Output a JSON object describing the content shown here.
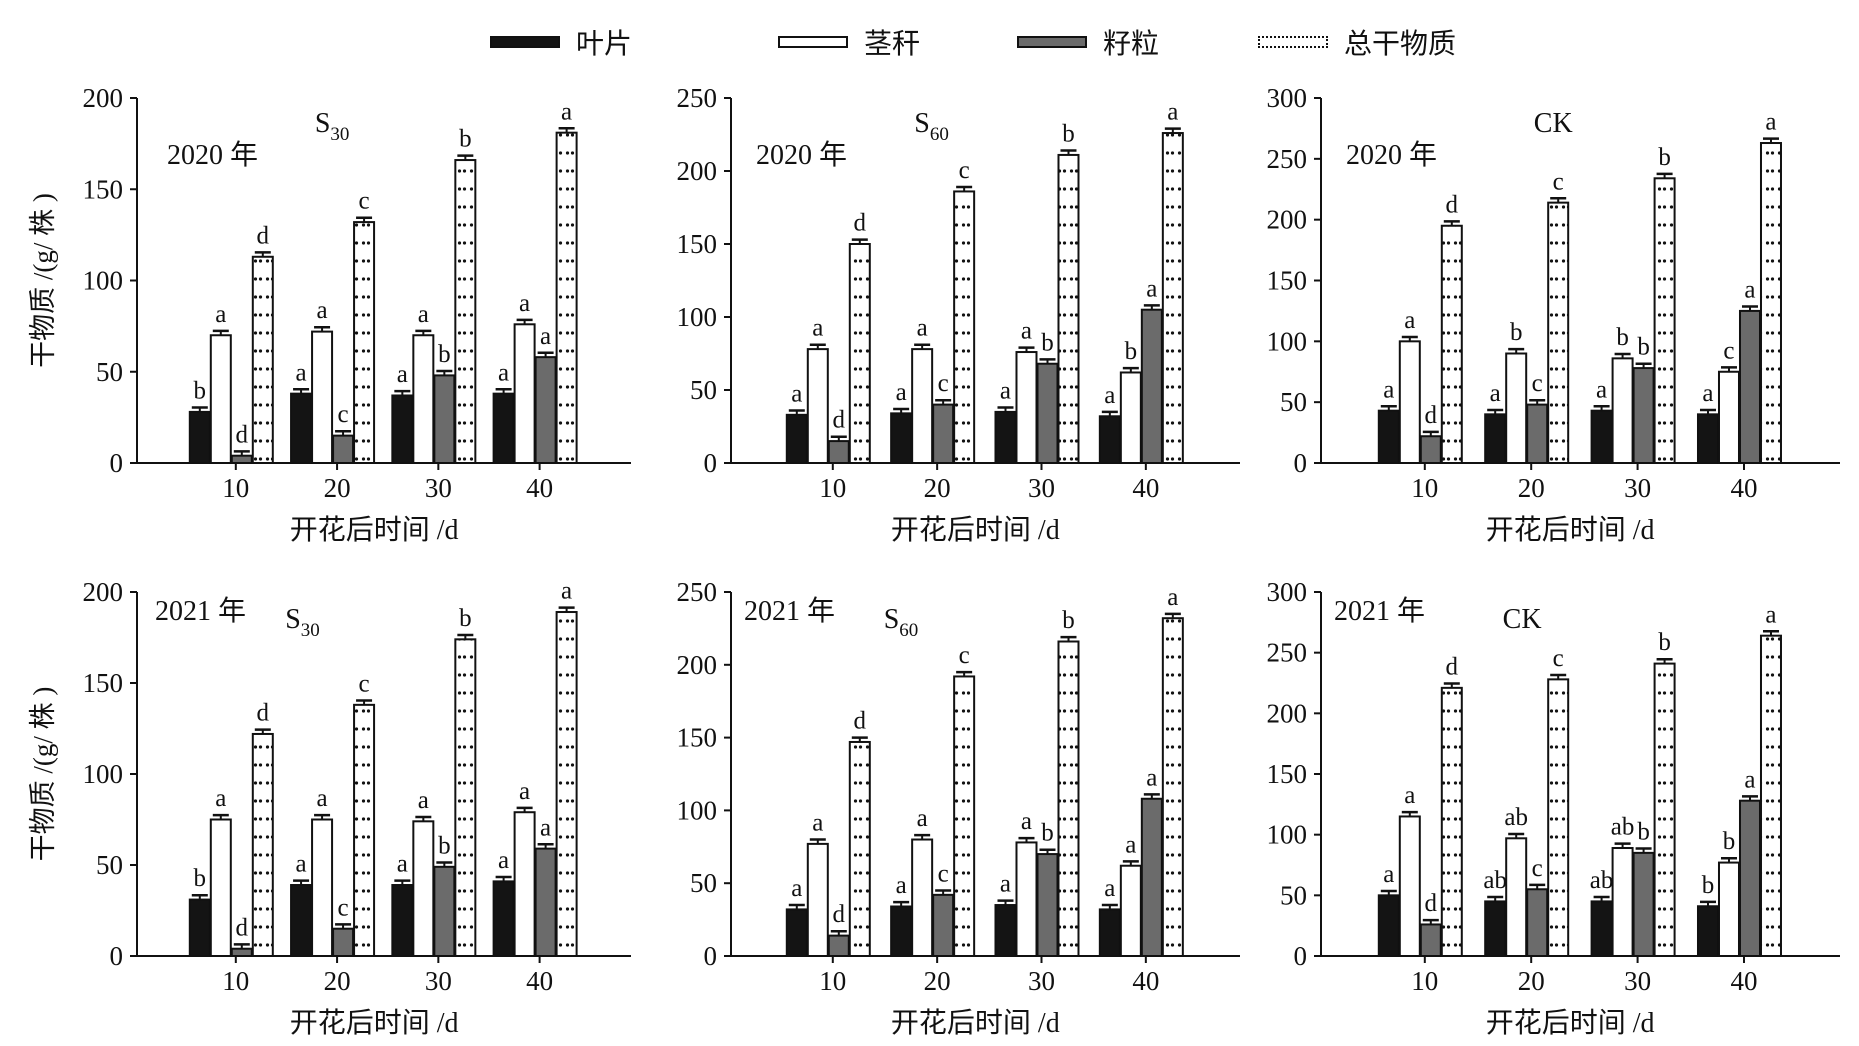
{
  "legend": {
    "leaf": "叶片",
    "stem": "茎秆",
    "grain": "籽粒",
    "total": "总干物质"
  },
  "colors": {
    "leaf": "#141414",
    "stem": "#ffffff",
    "grain": "#6b6b6b",
    "total": "#ffffff"
  },
  "chart_data": [
    {
      "type": "bar",
      "year": "2020 年",
      "title_main": "S",
      "title_sub": "30",
      "ylabel": "干物质 /(g/ 株 )",
      "xlabel": "开花后时间 /d",
      "ylim": [
        0,
        200
      ],
      "yticks": [
        0,
        50,
        100,
        150,
        200
      ],
      "categories": [
        "10",
        "20",
        "30",
        "40"
      ],
      "series": [
        {
          "name": "叶片",
          "values": [
            28,
            38,
            37,
            38
          ],
          "letters": [
            "b",
            "a",
            "a",
            "a"
          ]
        },
        {
          "name": "茎秆",
          "values": [
            70,
            72,
            70,
            76
          ],
          "letters": [
            "a",
            "a",
            "a",
            "a"
          ]
        },
        {
          "name": "籽粒",
          "values": [
            4,
            15,
            48,
            58
          ],
          "letters": [
            "d",
            "c",
            "b",
            "a"
          ]
        },
        {
          "name": "总干物质",
          "values": [
            113,
            132,
            166,
            181
          ],
          "letters": [
            "d",
            "c",
            "b",
            "a"
          ]
        }
      ]
    },
    {
      "type": "bar",
      "year": "2020 年",
      "title_main": "S",
      "title_sub": "60",
      "ylabel": "",
      "xlabel": "开花后时间 /d",
      "ylim": [
        0,
        250
      ],
      "yticks": [
        0,
        50,
        100,
        150,
        200,
        250
      ],
      "categories": [
        "10",
        "20",
        "30",
        "40"
      ],
      "series": [
        {
          "name": "叶片",
          "values": [
            33,
            34,
            35,
            32
          ],
          "letters": [
            "a",
            "a",
            "a",
            "a"
          ]
        },
        {
          "name": "茎秆",
          "values": [
            78,
            78,
            76,
            62
          ],
          "letters": [
            "a",
            "a",
            "a",
            "b"
          ]
        },
        {
          "name": "籽粒",
          "values": [
            15,
            40,
            68,
            105
          ],
          "letters": [
            "d",
            "c",
            "b",
            "a"
          ]
        },
        {
          "name": "总干物质",
          "values": [
            150,
            186,
            211,
            226
          ],
          "letters": [
            "d",
            "c",
            "b",
            "a"
          ]
        }
      ]
    },
    {
      "type": "bar",
      "year": "2020 年",
      "title_main": "CK",
      "title_sub": "",
      "ylabel": "",
      "xlabel": "开花后时间 /d",
      "ylim": [
        0,
        300
      ],
      "yticks": [
        0,
        50,
        100,
        150,
        200,
        250,
        300
      ],
      "categories": [
        "10",
        "20",
        "30",
        "40"
      ],
      "series": [
        {
          "name": "叶片",
          "values": [
            43,
            40,
            43,
            40
          ],
          "letters": [
            "a",
            "a",
            "a",
            "a"
          ]
        },
        {
          "name": "茎秆",
          "values": [
            100,
            90,
            86,
            75
          ],
          "letters": [
            "a",
            "b",
            "b",
            "c"
          ]
        },
        {
          "name": "籽粒",
          "values": [
            22,
            48,
            78,
            125
          ],
          "letters": [
            "d",
            "c",
            "b",
            "a"
          ]
        },
        {
          "name": "总干物质",
          "values": [
            195,
            214,
            234,
            263
          ],
          "letters": [
            "d",
            "c",
            "b",
            "a"
          ]
        }
      ]
    },
    {
      "type": "bar",
      "year": "2021 年",
      "title_main": "S",
      "title_sub": "30",
      "ylabel": "干物质 /(g/ 株 )",
      "xlabel": "开花后时间 /d",
      "ylim": [
        0,
        200
      ],
      "yticks": [
        0,
        50,
        100,
        150,
        200
      ],
      "categories": [
        "10",
        "20",
        "30",
        "40"
      ],
      "series": [
        {
          "name": "叶片",
          "values": [
            31,
            39,
            39,
            41
          ],
          "letters": [
            "b",
            "a",
            "a",
            "a"
          ]
        },
        {
          "name": "茎秆",
          "values": [
            75,
            75,
            74,
            79
          ],
          "letters": [
            "a",
            "a",
            "a",
            "a"
          ]
        },
        {
          "name": "籽粒",
          "values": [
            4,
            15,
            49,
            59
          ],
          "letters": [
            "d",
            "c",
            "b",
            "a"
          ]
        },
        {
          "name": "总干物质",
          "values": [
            122,
            138,
            174,
            189
          ],
          "letters": [
            "d",
            "c",
            "b",
            "a"
          ]
        }
      ]
    },
    {
      "type": "bar",
      "year": "2021 年",
      "title_main": "S",
      "title_sub": "60",
      "ylabel": "",
      "xlabel": "开花后时间 /d",
      "ylim": [
        0,
        250
      ],
      "yticks": [
        0,
        50,
        100,
        150,
        200,
        250
      ],
      "categories": [
        "10",
        "20",
        "30",
        "40"
      ],
      "series": [
        {
          "name": "叶片",
          "values": [
            32,
            34,
            35,
            32
          ],
          "letters": [
            "a",
            "a",
            "a",
            "a"
          ]
        },
        {
          "name": "茎秆",
          "values": [
            77,
            80,
            78,
            62
          ],
          "letters": [
            "a",
            "a",
            "a",
            "a"
          ]
        },
        {
          "name": "籽粒",
          "values": [
            14,
            42,
            70,
            108
          ],
          "letters": [
            "d",
            "c",
            "b",
            "a"
          ]
        },
        {
          "name": "总干物质",
          "values": [
            147,
            192,
            216,
            232
          ],
          "letters": [
            "d",
            "c",
            "b",
            "a"
          ]
        }
      ]
    },
    {
      "type": "bar",
      "year": "2021 年",
      "title_main": "CK",
      "title_sub": "",
      "ylabel": "",
      "xlabel": "开花后时间 /d",
      "ylim": [
        0,
        300
      ],
      "yticks": [
        0,
        50,
        100,
        150,
        200,
        250,
        300
      ],
      "categories": [
        "10",
        "20",
        "30",
        "40"
      ],
      "series": [
        {
          "name": "叶片",
          "values": [
            50,
            45,
            45,
            41
          ],
          "letters": [
            "a",
            "ab",
            "ab",
            "b"
          ]
        },
        {
          "name": "茎秆",
          "values": [
            115,
            97,
            89,
            77
          ],
          "letters": [
            "a",
            "ab",
            "ab",
            "b"
          ]
        },
        {
          "name": "籽粒",
          "values": [
            26,
            55,
            85,
            128
          ],
          "letters": [
            "d",
            "c",
            "b",
            "a"
          ]
        },
        {
          "name": "总干物质",
          "values": [
            221,
            228,
            241,
            264
          ],
          "letters": [
            "d",
            "c",
            "b",
            "a"
          ]
        }
      ]
    }
  ]
}
